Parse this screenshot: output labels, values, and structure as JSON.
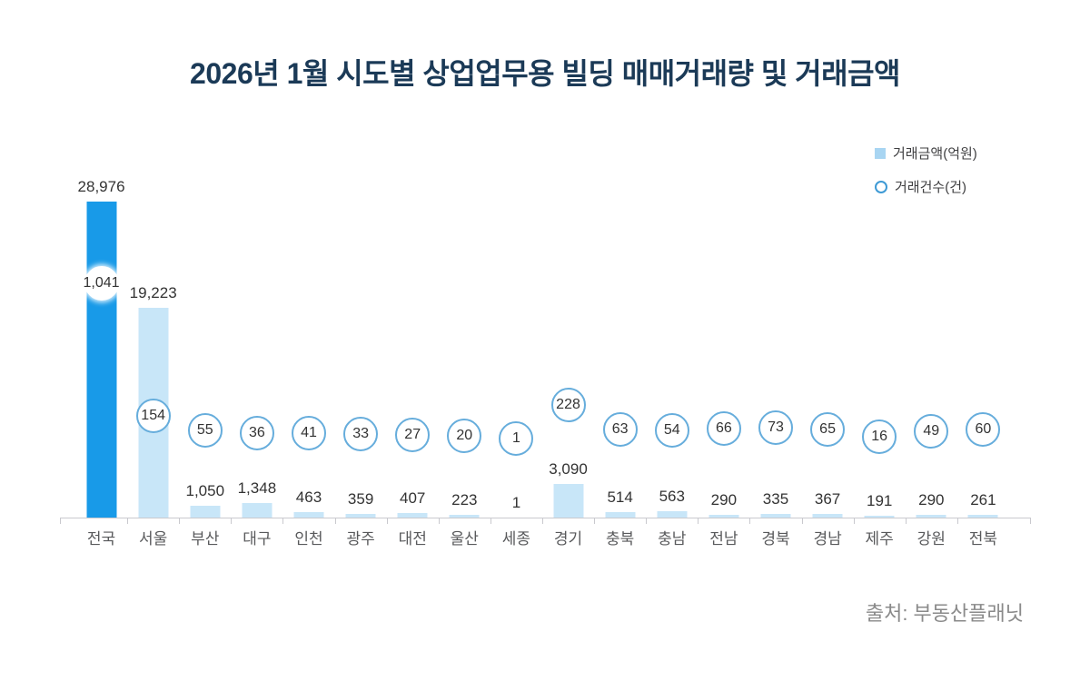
{
  "title": "2026년 1월 시도별 상업업무용 빌딩 매매거래량 및 거래금액",
  "legend": [
    {
      "label": "거래금액(억원)",
      "marker": "square"
    },
    {
      "label": "거래건수(건)",
      "marker": "circle"
    }
  ],
  "source": "출처: 부동산플래닛",
  "colors": {
    "national_bar": "#189AE8",
    "region_bar": "#C8E6F8",
    "circle_border": "#66ADDC",
    "title_text": "#1B3A57",
    "axis": "#C9C9CE"
  },
  "chart_data": {
    "type": "bar",
    "title": "2026년 1월 시도별 상업업무용 빌딩 매매거래량 및 거래금액",
    "categories": [
      "전국",
      "서울",
      "부산",
      "대구",
      "인천",
      "광주",
      "대전",
      "울산",
      "세종",
      "경기",
      "충북",
      "충남",
      "전남",
      "경북",
      "경남",
      "제주",
      "강원",
      "전북"
    ],
    "series": [
      {
        "name": "거래금액(억원)",
        "type": "bar",
        "values": [
          28976,
          19223,
          1050,
          1348,
          463,
          359,
          407,
          223,
          1,
          3090,
          514,
          563,
          290,
          335,
          367,
          191,
          290,
          261
        ]
      },
      {
        "name": "거래건수(건)",
        "type": "point",
        "values": [
          1041,
          154,
          55,
          36,
          41,
          33,
          27,
          20,
          1,
          228,
          63,
          54,
          66,
          73,
          65,
          16,
          49,
          60
        ]
      }
    ],
    "highlight_category": "전국",
    "value_labels": true,
    "grid": false,
    "legend_position": "top-right",
    "xlabel": "",
    "ylabel": ""
  }
}
